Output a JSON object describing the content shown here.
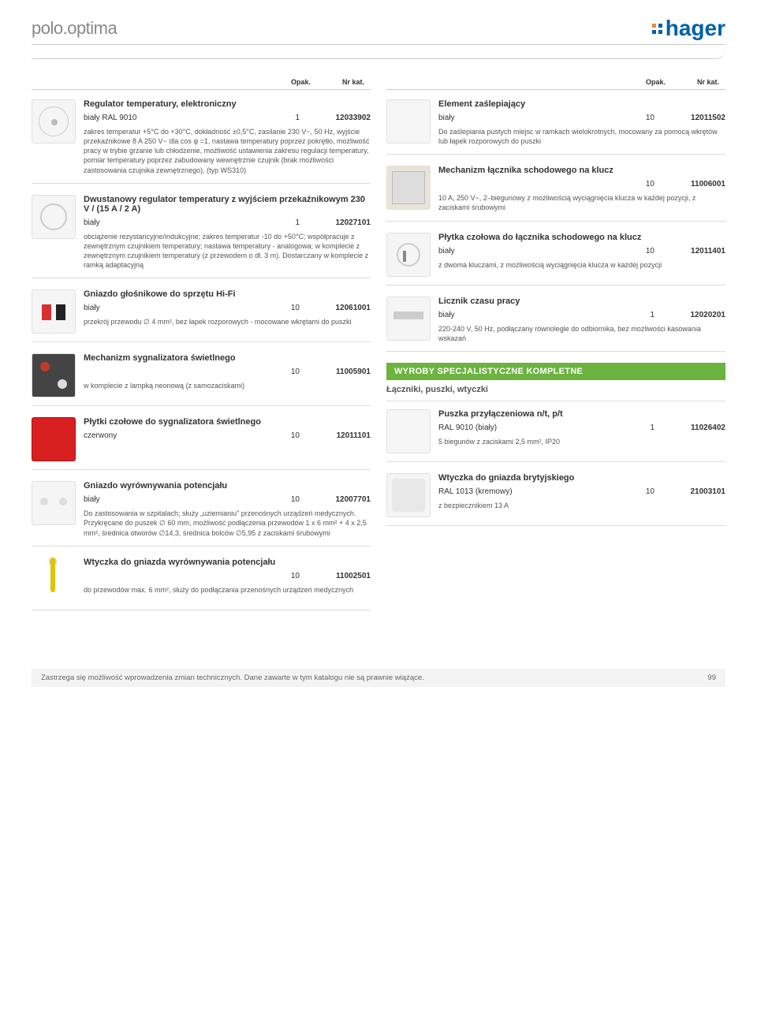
{
  "header": {
    "title": "polo.optima",
    "logo": "hager"
  },
  "colhead": {
    "opak": "Opak.",
    "nrkat": "Nr kat."
  },
  "left": [
    {
      "title": "Regulator temperatury, elektroniczny",
      "thumb": "switch",
      "rows": [
        {
          "variant": "biały RAL 9010",
          "opak": "1",
          "nrkat": "12033902"
        }
      ],
      "desc": "zakres temperatur +5°C do +30°C, dokładność ±0,5°C, zasilanie 230 V~, 50 Hz, wyjście przekaźnikowe 8 A 250 V~ dla cos φ =1, nastawa temperatury poprzez pokrętło, możliwość pracy w trybie grzanie lub chłodzenie, możliwość ustawienia zakresu regulacji temperatury, pomiar temperatury poprzez zabudowany wewnętrznie czujnik (brak możliwości zastosowania czujnika zewnętrznego), (typ WS310)"
    },
    {
      "title": "Dwustanowy regulator temperatury z wyjściem przekaźnikowym 230 V / (15 A / 2 A)",
      "thumb": "dial",
      "rows": [
        {
          "variant": "biały",
          "opak": "1",
          "nrkat": "12027101"
        }
      ],
      "desc": "obciążenie rezystancyjne/indukcyjne; zakres temperatur -10 do +50°C; współpracuje z zewnętrznym czujnikiem temperatury; nastawa temperatury - analogowa; w komplecie z zewnętrznym czujnikiem temperatury (z przewodem o dł. 3 m). Dostarczany w komplecie z ramką adaptacyjną"
    },
    {
      "title": "Gniazdo głośnikowe do sprzętu Hi-Fi",
      "thumb": "hifi",
      "rows": [
        {
          "variant": "biały",
          "opak": "10",
          "nrkat": "12061001"
        }
      ],
      "desc": "przekrój przewodu ∅ 4 mm², bez łapek rozporowych - mocowane wkrętami do puszki"
    },
    {
      "title": "Mechanizm sygnalizatora świetlnego",
      "thumb": "signal",
      "rows": [
        {
          "variant": "",
          "opak": "10",
          "nrkat": "11005901"
        }
      ],
      "desc": "w komplecie z lampką neonową (z samozaciskami)"
    },
    {
      "title": "Płytki czołowe do sygnalizatora świetlnego",
      "thumb": "red",
      "rows": [
        {
          "variant": "czerwony",
          "opak": "10",
          "nrkat": "12011101"
        }
      ],
      "desc": ""
    },
    {
      "title": "Gniazdo wyrównywania potencjału",
      "thumb": "socket",
      "rows": [
        {
          "variant": "biały",
          "opak": "10",
          "nrkat": "12007701"
        }
      ],
      "desc": "Do zastosowania w szpitalach; służy „uziemianiu\" przenośnych urządzeń medycznych. Przykręcane do puszek ∅ 60 mm, możliwość podłączenia przewodów 1 x 6 mm² + 4 x 2,5 mm², średnica otworów ∅14,3, średnica bolców ∅5,95 z zaciskami śrubowymi"
    },
    {
      "title": "Wtyczka do gniazda wyrównywania potencjału",
      "thumb": "pin",
      "rows": [
        {
          "variant": "",
          "opak": "10",
          "nrkat": "11002501"
        }
      ],
      "desc": "do przewodów max. 6 mm², służy do podłączania przenośnych urządzeń medycznych"
    }
  ],
  "right": [
    {
      "title": "Element zaślepiający",
      "thumb": "blank",
      "rows": [
        {
          "variant": "biały",
          "opak": "10",
          "nrkat": "12011502"
        }
      ],
      "desc": "Do zaślepiania pustych miejsc w ramkach wielokrotnych, mocowany za pomocą wkrętów lub łapek rozporowych do puszki"
    },
    {
      "title": "Mechanizm łącznika schodowego na klucz",
      "thumb": "mech",
      "rows": [
        {
          "variant": "",
          "opak": "10",
          "nrkat": "11006001"
        }
      ],
      "desc": "10 A, 250 V~, 2–biegunowy z możliwością wyciągnięcia klucza w każdej pozycji, z zaciskami śrubowymi"
    },
    {
      "title": "Płytka czołowa do łącznika schodowego na klucz",
      "thumb": "keylock",
      "rows": [
        {
          "variant": "biały",
          "opak": "10",
          "nrkat": "12011401"
        }
      ],
      "desc": "z dwoma kluczami, z możliwością wyciągnięcia klucza w każdej pozycji"
    },
    {
      "title": "Licznik czasu pracy",
      "thumb": "counter",
      "rows": [
        {
          "variant": "biały",
          "opak": "1",
          "nrkat": "12020201"
        }
      ],
      "desc": "220-240 V, 50 Hz, podłączany równolegle do odbiornika, bez możliwości kasowania wskazań"
    }
  ],
  "section": {
    "heading": "WYROBY SPECJALISTYCZNE KOMPLETNE",
    "sub": "Łączniki, puszki, wtyczki"
  },
  "right2": [
    {
      "title": "Puszka przyłączeniowa n/t, p/t",
      "thumb": "blank",
      "rows": [
        {
          "variant": "RAL 9010 (biały)",
          "opak": "1",
          "nrkat": "11026402"
        }
      ],
      "desc": "5 biegunów z zaciskami 2,5 mm², IP20"
    },
    {
      "title": "Wtyczka do gniazda brytyjskiego",
      "thumb": "plug",
      "rows": [
        {
          "variant": "RAL 1013 (kremowy)",
          "opak": "10",
          "nrkat": "21003101"
        }
      ],
      "desc": "z bezpiecznikiem 13 A"
    }
  ],
  "footer": {
    "text": "Zastrzega się możliwość wprowadzenia zmian technicznych. Dane zawarte w tym katalogu nie są prawnie wiążące.",
    "page": "99"
  }
}
